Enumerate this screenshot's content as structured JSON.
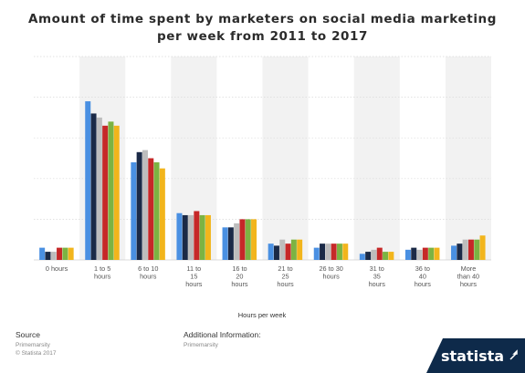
{
  "title_line1": "Amount of time spent by marketers on social media marketing",
  "title_line2": "per week from 2011 to 2017",
  "footer": {
    "source_label": "Source",
    "source_line1": "Primemarsity",
    "source_line2": "© Statista 2017",
    "info_label": "Additional Information:",
    "info_line1": "Primemarsity"
  },
  "brand": "statista",
  "colors": {
    "bg": "#ffffff",
    "band": "#f2f2f2",
    "grid": "#d9d9d9",
    "logo_bg": "#0e2a4a"
  },
  "chart_data": {
    "type": "bar",
    "title": "Amount of time spent by marketers on social media marketing per week from 2011 to 2017",
    "xlabel": "Hours per week",
    "ylabel": "",
    "ylim": [
      0,
      100
    ],
    "grid": true,
    "legend": "none",
    "categories": [
      [
        "0 hours"
      ],
      [
        "1 to 5",
        "hours"
      ],
      [
        "6 to 10",
        "hours"
      ],
      [
        "11 to",
        "15",
        "hours"
      ],
      [
        "16 to",
        "20",
        "hours"
      ],
      [
        "21 to",
        "25",
        "hours"
      ],
      [
        "26 to 30",
        "hours"
      ],
      [
        "31 to",
        "35",
        "hours"
      ],
      [
        "36 to",
        "40",
        "hours"
      ],
      [
        "More",
        "than 40",
        "hours"
      ]
    ],
    "series": [
      {
        "color": "#4a90e2",
        "values": [
          6,
          78,
          48,
          23,
          16,
          8,
          6,
          3,
          5,
          7
        ]
      },
      {
        "color": "#1b2a47",
        "values": [
          4,
          72,
          53,
          22,
          16,
          7,
          8,
          4,
          6,
          8
        ]
      },
      {
        "color": "#bdbdbd",
        "values": [
          4,
          70,
          54,
          22,
          18,
          10,
          8,
          5,
          5,
          10
        ]
      },
      {
        "color": "#c62828",
        "values": [
          6,
          66,
          50,
          24,
          20,
          8,
          8,
          6,
          6,
          10
        ]
      },
      {
        "color": "#7cb342",
        "values": [
          6,
          68,
          48,
          22,
          20,
          10,
          8,
          4,
          6,
          10
        ]
      },
      {
        "color": "#f2b51c",
        "values": [
          6,
          66,
          45,
          22,
          20,
          10,
          8,
          4,
          6,
          12
        ]
      }
    ]
  }
}
